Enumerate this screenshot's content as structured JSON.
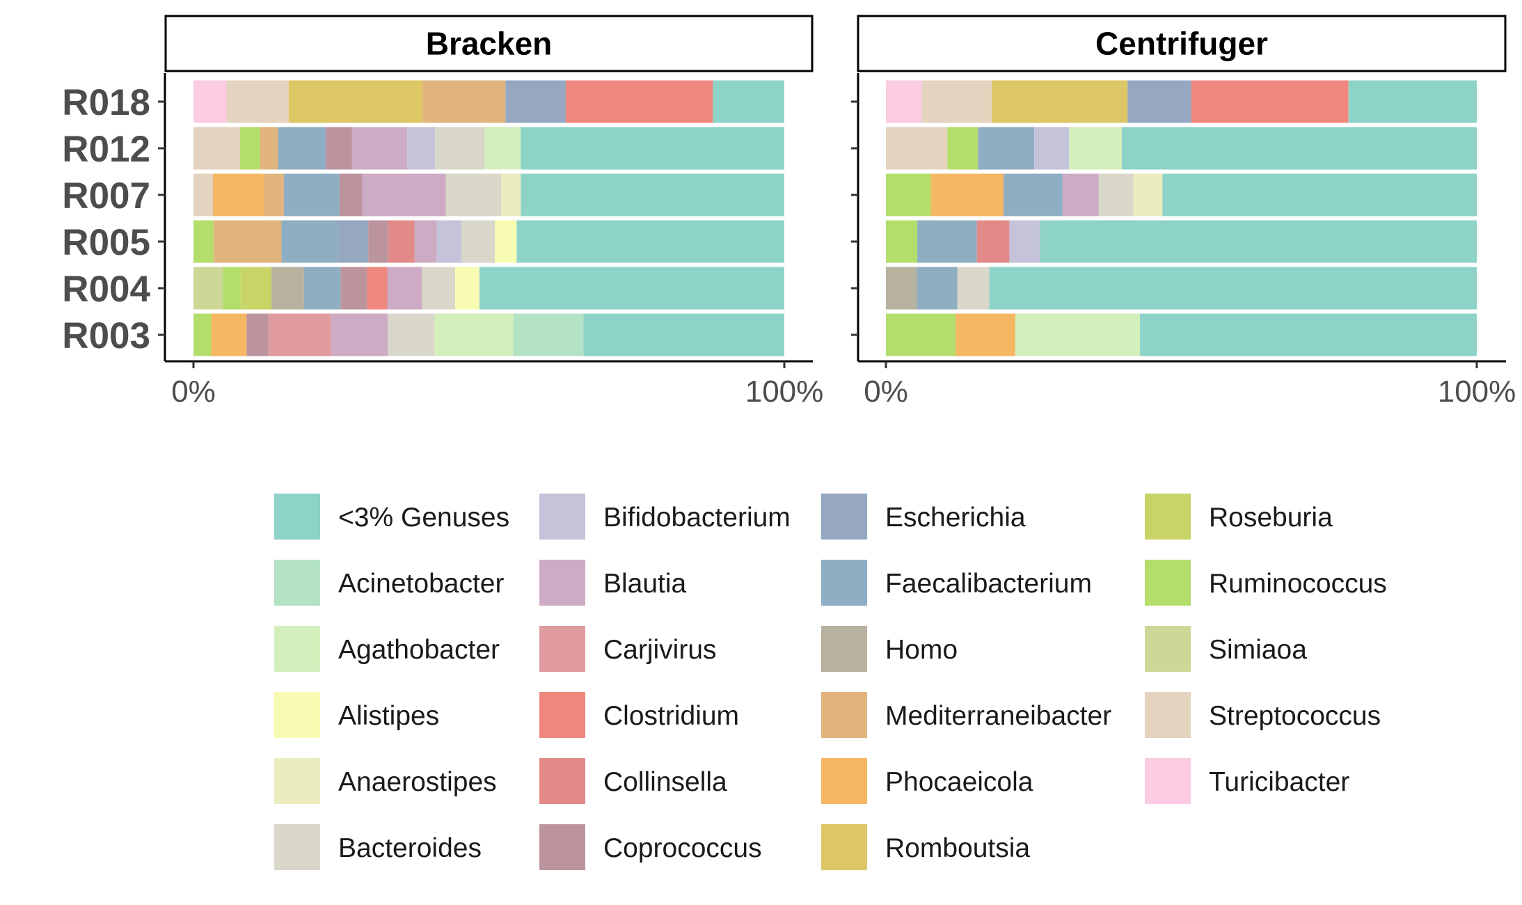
{
  "chart_data": {
    "type": "bar",
    "orientation": "horizontal",
    "stacked": true,
    "normalized": true,
    "facets": [
      "Bracken",
      "Centrifuger"
    ],
    "categories": [
      "R018",
      "R012",
      "R007",
      "R005",
      "R004",
      "R003"
    ],
    "x_ticks": [
      "0%",
      "100%"
    ],
    "xlim": [
      0,
      100
    ],
    "grid": false,
    "legend_position": "bottom",
    "genera": [
      {
        "name": "<3% Genuses",
        "color": "#8dd3c7"
      },
      {
        "name": "Acinetobacter",
        "color": "#b3e2c4"
      },
      {
        "name": "Agathobacter",
        "color": "#d5efbc"
      },
      {
        "name": "Alistipes",
        "color": "#f8fbb2"
      },
      {
        "name": "Anaerostipes",
        "color": "#ebecc0"
      },
      {
        "name": "Bacteroides",
        "color": "#d9d7c9"
      },
      {
        "name": "Bifidobacterium",
        "color": "#c4c3d9"
      },
      {
        "name": "Blautia",
        "color": "#cdabc4"
      },
      {
        "name": "Carjivirus",
        "color": "#e09ba0"
      },
      {
        "name": "Clostridium",
        "color": "#f0877e"
      },
      {
        "name": "Collinsella",
        "color": "#e28a87"
      },
      {
        "name": "Coprococcus",
        "color": "#bc949d"
      },
      {
        "name": "Escherichia",
        "color": "#95a7c1"
      },
      {
        "name": "Faecalibacterium",
        "color": "#8faec4"
      },
      {
        "name": "Homo",
        "color": "#b7b19f"
      },
      {
        "name": "Mediterraneibacter",
        "color": "#e2b47d"
      },
      {
        "name": "Phocaeicola",
        "color": "#f5b762"
      },
      {
        "name": "Romboutsia",
        "color": "#ddc665"
      },
      {
        "name": "Roseburia",
        "color": "#c9d467"
      },
      {
        "name": "Ruminococcus",
        "color": "#b4de6c"
      },
      {
        "name": "Simiaoa",
        "color": "#cdd896"
      },
      {
        "name": "Streptococcus",
        "color": "#e4d3bf"
      },
      {
        "name": "Turicibacter",
        "color": "#fbcbe2"
      }
    ],
    "series": {
      "Bracken": {
        "R018": [
          [
            "Turicibacter",
            5.6
          ],
          [
            "Streptococcus",
            10.5
          ],
          [
            "Romboutsia",
            22.7
          ],
          [
            "Mediterraneibacter",
            14.0
          ],
          [
            "Escherichia",
            10.2
          ],
          [
            "Clostridium",
            24.9
          ],
          [
            "<3% Genuses",
            12.1
          ]
        ],
        "R012": [
          [
            "Streptococcus",
            7.9
          ],
          [
            "Ruminococcus",
            3.4
          ],
          [
            "Mediterraneibacter",
            3.0
          ],
          [
            "Faecalibacterium",
            8.1
          ],
          [
            "Coprococcus",
            4.4
          ],
          [
            "Blautia",
            9.4
          ],
          [
            "Bifidobacterium",
            4.7
          ],
          [
            "Bacteroides",
            8.4
          ],
          [
            "Agathobacter",
            6.1
          ],
          [
            "<3% Genuses",
            44.6
          ]
        ],
        "R007": [
          [
            "Streptococcus",
            3.3
          ],
          [
            "Phocaeicola",
            8.6
          ],
          [
            "Mediterraneibacter",
            3.4
          ],
          [
            "Faecalibacterium",
            9.4
          ],
          [
            "Coprococcus",
            3.9
          ],
          [
            "Blautia",
            14.1
          ],
          [
            "Bacteroides",
            9.4
          ],
          [
            "Anaerostipes",
            3.3
          ],
          [
            "<3% Genuses",
            44.6
          ]
        ],
        "R005": [
          [
            "Ruminococcus",
            3.4
          ],
          [
            "Mediterraneibacter",
            11.5
          ],
          [
            "Faecalibacterium",
            9.5
          ],
          [
            "Escherichia",
            5.2
          ],
          [
            "Coprococcus",
            3.4
          ],
          [
            "Collinsella",
            4.4
          ],
          [
            "Blautia",
            3.8
          ],
          [
            "Bifidobacterium",
            4.1
          ],
          [
            "Bacteroides",
            5.7
          ],
          [
            "Alistipes",
            3.7
          ],
          [
            "<3% Genuses",
            45.3
          ]
        ],
        "R004": [
          [
            "Simiaoa",
            5.0
          ],
          [
            "Ruminococcus",
            3.0
          ],
          [
            "Roseburia",
            5.2
          ],
          [
            "Homo",
            5.5
          ],
          [
            "Faecalibacterium",
            6.2
          ],
          [
            "Coprococcus",
            4.5
          ],
          [
            "Clostridium",
            3.4
          ],
          [
            "Blautia",
            5.9
          ],
          [
            "Bacteroides",
            5.6
          ],
          [
            "Alistipes",
            4.1
          ],
          [
            "<3% Genuses",
            51.6
          ]
        ],
        "R003": [
          [
            "Ruminococcus",
            3.0
          ],
          [
            "Phocaeicola",
            6.0
          ],
          [
            "Coprococcus",
            3.7
          ],
          [
            "Carjivirus",
            10.6
          ],
          [
            "Blautia",
            9.6
          ],
          [
            "Bacteroides",
            7.9
          ],
          [
            "Agathobacter",
            13.3
          ],
          [
            "Acinetobacter",
            11.9
          ],
          [
            "<3% Genuses",
            34.0
          ]
        ]
      },
      "Centrifuger": {
        "R018": [
          [
            "Turicibacter",
            6.1
          ],
          [
            "Streptococcus",
            11.8
          ],
          [
            "Romboutsia",
            23.0
          ],
          [
            "Escherichia",
            10.8
          ],
          [
            "Clostridium",
            26.6
          ],
          [
            "<3% Genuses",
            21.7
          ]
        ],
        "R012": [
          [
            "Streptococcus",
            10.4
          ],
          [
            "Ruminococcus",
            5.2
          ],
          [
            "Faecalibacterium",
            9.5
          ],
          [
            "Bifidobacterium",
            5.9
          ],
          [
            "Agathobacter",
            8.9
          ],
          [
            "<3% Genuses",
            60.1
          ]
        ],
        "R007": [
          [
            "Ruminococcus",
            7.6
          ],
          [
            "Phocaeicola",
            12.3
          ],
          [
            "Faecalibacterium",
            10.0
          ],
          [
            "Blautia",
            6.1
          ],
          [
            "Bacteroides",
            5.9
          ],
          [
            "Anaerostipes",
            4.9
          ],
          [
            "<3% Genuses",
            53.2
          ]
        ],
        "R005": [
          [
            "Ruminococcus",
            5.3
          ],
          [
            "Faecalibacterium",
            10.1
          ],
          [
            "Collinsella",
            5.5
          ],
          [
            "Bifidobacterium",
            5.2
          ],
          [
            "<3% Genuses",
            73.9
          ]
        ],
        "R004": [
          [
            "Homo",
            5.2
          ],
          [
            "Faecalibacterium",
            6.9
          ],
          [
            "Bacteroides",
            5.4
          ],
          [
            "<3% Genuses",
            82.5
          ]
        ],
        "R003": [
          [
            "Ruminococcus",
            11.8
          ],
          [
            "Phocaeicola",
            10.1
          ],
          [
            "Agathobacter",
            21.1
          ],
          [
            "<3% Genuses",
            57.0
          ]
        ]
      }
    }
  }
}
